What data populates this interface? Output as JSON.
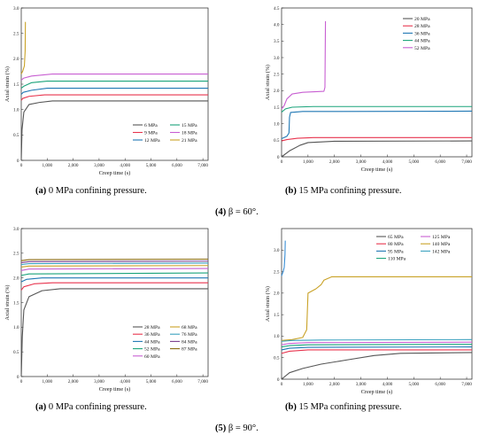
{
  "captions": {
    "a_label": "(a)",
    "a_text": " 0 MPa confining pressure.",
    "b_label": "(b)",
    "b_text": " 15 MPa confining pressure.",
    "row1_num": "(4)",
    "row1_text": " β = 60°.",
    "row2_num": "(5)",
    "row2_text": " β = 90°."
  },
  "chart_data": [
    {
      "type": "line",
      "panel": "a",
      "row": "4",
      "xlabel": "Creep time (s)",
      "ylabel": "Axial strain (%)",
      "xlim": [
        0,
        7200
      ],
      "ylim": [
        0,
        3.0
      ],
      "xticks": [
        0,
        1000,
        2000,
        3000,
        4000,
        5000,
        6000,
        7000
      ],
      "xtick_labels": [
        "0",
        "1,000",
        "2,000",
        "3,000",
        "4,000",
        "5,000",
        "6,000",
        "7,000"
      ],
      "yticks": [
        0,
        0.5,
        1.0,
        1.5,
        2.0,
        2.5,
        3.0
      ],
      "ytick_labels": [
        "0",
        "0.5",
        "1.0",
        "1.5",
        "2.0",
        "2.5",
        "3.0"
      ],
      "legend_position": "bottom-right",
      "legend_columns": 2,
      "series": [
        {
          "name": "6 MPa",
          "color": "#555555",
          "points": [
            [
              0,
              0
            ],
            [
              30,
              0.6
            ],
            [
              100,
              0.95
            ],
            [
              300,
              1.1
            ],
            [
              700,
              1.14
            ],
            [
              1200,
              1.17
            ],
            [
              7200,
              1.17
            ]
          ]
        },
        {
          "name": "9 MPa",
          "color": "#e8344e",
          "points": [
            [
              0,
              1.18
            ],
            [
              60,
              1.22
            ],
            [
              300,
              1.26
            ],
            [
              900,
              1.29
            ],
            [
              7200,
              1.29
            ]
          ]
        },
        {
          "name": "12 MPa",
          "color": "#1f77b4",
          "points": [
            [
              0,
              1.3
            ],
            [
              80,
              1.34
            ],
            [
              400,
              1.38
            ],
            [
              1000,
              1.42
            ],
            [
              7200,
              1.42
            ]
          ]
        },
        {
          "name": "15 MPa",
          "color": "#1aa37a",
          "points": [
            [
              0,
              1.42
            ],
            [
              100,
              1.46
            ],
            [
              400,
              1.53
            ],
            [
              1000,
              1.56
            ],
            [
              7200,
              1.56
            ]
          ]
        },
        {
          "name": "18 MPa",
          "color": "#c85fd2",
          "points": [
            [
              0,
              1.58
            ],
            [
              100,
              1.62
            ],
            [
              400,
              1.66
            ],
            [
              1200,
              1.7
            ],
            [
              7200,
              1.7
            ]
          ]
        },
        {
          "name": "21 MPa",
          "color": "#c9a227",
          "points": [
            [
              0,
              1.7
            ],
            [
              60,
              1.76
            ],
            [
              120,
              1.86
            ],
            [
              150,
              2.15
            ],
            [
              160,
              2.72
            ],
            [
              165,
              2.72
            ]
          ]
        }
      ]
    },
    {
      "type": "line",
      "panel": "b",
      "row": "4",
      "xlabel": "Creep time (s)",
      "ylabel": "Axial strain (%)",
      "xlim": [
        0,
        7200
      ],
      "ylim": [
        0,
        4.5
      ],
      "xticks": [
        0,
        1000,
        2000,
        3000,
        4000,
        5000,
        6000,
        7000
      ],
      "xtick_labels": [
        "0",
        "1,000",
        "2,000",
        "3,000",
        "4,000",
        "5,000",
        "6,000",
        "7,000"
      ],
      "yticks": [
        0,
        0.5,
        1.0,
        1.5,
        2.0,
        2.5,
        3.0,
        3.5,
        4.0,
        4.5
      ],
      "ytick_labels": [
        "0",
        "0.5",
        "1.0",
        "1.5",
        "2.0",
        "2.5",
        "3.0",
        "3.5",
        "4.0",
        "4.5"
      ],
      "legend_position": "top-right",
      "legend_columns": 1,
      "series": [
        {
          "name": "20 MPa",
          "color": "#555555",
          "points": [
            [
              0,
              0
            ],
            [
              300,
              0.18
            ],
            [
              700,
              0.35
            ],
            [
              1000,
              0.43
            ],
            [
              2000,
              0.47
            ],
            [
              7200,
              0.48
            ]
          ]
        },
        {
          "name": "28 MPa",
          "color": "#e8344e",
          "points": [
            [
              0,
              0.48
            ],
            [
              200,
              0.52
            ],
            [
              600,
              0.56
            ],
            [
              1200,
              0.58
            ],
            [
              7200,
              0.58
            ]
          ]
        },
        {
          "name": "36 MPa",
          "color": "#1f77b4",
          "points": [
            [
              0,
              0.55
            ],
            [
              200,
              0.62
            ],
            [
              280,
              0.72
            ],
            [
              300,
              1.2
            ],
            [
              340,
              1.34
            ],
            [
              800,
              1.37
            ],
            [
              7200,
              1.38
            ]
          ]
        },
        {
          "name": "44 MPa",
          "color": "#1aa37a",
          "points": [
            [
              0,
              1.35
            ],
            [
              150,
              1.45
            ],
            [
              400,
              1.5
            ],
            [
              1200,
              1.52
            ],
            [
              7200,
              1.52
            ]
          ]
        },
        {
          "name": "52 MPa",
          "color": "#c85fd2",
          "points": [
            [
              0,
              1.45
            ],
            [
              100,
              1.55
            ],
            [
              200,
              1.75
            ],
            [
              400,
              1.9
            ],
            [
              800,
              1.95
            ],
            [
              1600,
              1.98
            ],
            [
              1640,
              2.1
            ],
            [
              1660,
              4.1
            ]
          ]
        }
      ]
    },
    {
      "type": "line",
      "panel": "a",
      "row": "5",
      "xlabel": "Creep time (s)",
      "ylabel": "Axial strain (%)",
      "xlim": [
        0,
        7200
      ],
      "ylim": [
        0,
        3.0
      ],
      "xticks": [
        0,
        1000,
        2000,
        3000,
        4000,
        5000,
        6000,
        7000
      ],
      "xtick_labels": [
        "0",
        "1,000",
        "2,000",
        "3,000",
        "4,000",
        "5,000",
        "6,000",
        "7,000"
      ],
      "yticks": [
        0,
        0.5,
        1.0,
        1.5,
        2.0,
        2.5,
        3.0
      ],
      "ytick_labels": [
        "0",
        "0.5",
        "1.0",
        "1.5",
        "2.0",
        "2.5",
        "3.0"
      ],
      "legend_position": "bottom-right",
      "legend_columns": 2,
      "series": [
        {
          "name": "28 MPa",
          "color": "#555555",
          "points": [
            [
              0,
              0
            ],
            [
              40,
              0.8
            ],
            [
              100,
              1.35
            ],
            [
              300,
              1.62
            ],
            [
              800,
              1.74
            ],
            [
              1500,
              1.78
            ],
            [
              7200,
              1.78
            ]
          ]
        },
        {
          "name": "36 MPa",
          "color": "#e8344e",
          "points": [
            [
              0,
              1.75
            ],
            [
              100,
              1.82
            ],
            [
              500,
              1.88
            ],
            [
              1200,
              1.9
            ],
            [
              7200,
              1.9
            ]
          ]
        },
        {
          "name": "44 MPa",
          "color": "#1f77b4",
          "points": [
            [
              0,
              1.92
            ],
            [
              200,
              1.97
            ],
            [
              800,
              2.0
            ],
            [
              7200,
              2.0
            ]
          ]
        },
        {
          "name": "52 MPa",
          "color": "#1aa37a",
          "points": [
            [
              0,
              2.05
            ],
            [
              300,
              2.08
            ],
            [
              7200,
              2.1
            ]
          ]
        },
        {
          "name": "60 MPa",
          "color": "#c85fd2",
          "points": [
            [
              0,
              2.15
            ],
            [
              300,
              2.18
            ],
            [
              7200,
              2.19
            ]
          ]
        },
        {
          "name": "68 MPa",
          "color": "#c9a227",
          "points": [
            [
              0,
              2.22
            ],
            [
              300,
              2.24
            ],
            [
              7200,
              2.25
            ]
          ]
        },
        {
          "name": "76 MPa",
          "color": "#3aa1bf",
          "points": [
            [
              0,
              2.27
            ],
            [
              300,
              2.29
            ],
            [
              7200,
              2.3
            ]
          ]
        },
        {
          "name": "84 MPa",
          "color": "#7b3f8c",
          "points": [
            [
              0,
              2.31
            ],
            [
              300,
              2.33
            ],
            [
              7200,
              2.34
            ]
          ]
        },
        {
          "name": "87 MPa",
          "color": "#8b6a10",
          "points": [
            [
              0,
              2.35
            ],
            [
              300,
              2.37
            ],
            [
              7200,
              2.38
            ]
          ]
        }
      ]
    },
    {
      "type": "line",
      "panel": "b",
      "row": "5",
      "xlabel": "Creep time (s)",
      "ylabel": "Axial strain (%)",
      "xlim": [
        0,
        7200
      ],
      "ylim": [
        0,
        3.5
      ],
      "xticks": [
        0,
        1000,
        2000,
        3000,
        4000,
        5000,
        6000,
        7000
      ],
      "xtick_labels": [
        "0",
        "1,000",
        "2,000",
        "3,000",
        "4,000",
        "5,000",
        "6,000",
        "7,000"
      ],
      "yticks": [
        0,
        0.5,
        1.0,
        1.5,
        2.0,
        2.5,
        3.0
      ],
      "ytick_labels": [
        "0",
        "0.5",
        "1.0",
        "1.5",
        "2.0",
        "2.5",
        "3.0"
      ],
      "legend_position": "top-right",
      "legend_columns": 2,
      "series": [
        {
          "name": "65 MPa",
          "color": "#555555",
          "points": [
            [
              0,
              0
            ],
            [
              300,
              0.15
            ],
            [
              800,
              0.25
            ],
            [
              1500,
              0.35
            ],
            [
              2500,
              0.45
            ],
            [
              3500,
              0.55
            ],
            [
              4500,
              0.6
            ],
            [
              7200,
              0.62
            ]
          ]
        },
        {
          "name": "80 MPa",
          "color": "#e8344e",
          "points": [
            [
              0,
              0.6
            ],
            [
              300,
              0.65
            ],
            [
              1000,
              0.68
            ],
            [
              7200,
              0.68
            ]
          ]
        },
        {
          "name": "95 MPa",
          "color": "#1f77b4",
          "points": [
            [
              0,
              0.68
            ],
            [
              300,
              0.72
            ],
            [
              1000,
              0.74
            ],
            [
              7200,
              0.75
            ]
          ]
        },
        {
          "name": "110 MPa",
          "color": "#1aa37a",
          "points": [
            [
              0,
              0.75
            ],
            [
              300,
              0.78
            ],
            [
              1000,
              0.8
            ],
            [
              7200,
              0.81
            ]
          ]
        },
        {
          "name": "125 MPa",
          "color": "#c85fd2",
          "points": [
            [
              0,
              0.8
            ],
            [
              300,
              0.83
            ],
            [
              1000,
              0.85
            ],
            [
              7200,
              0.86
            ]
          ]
        },
        {
          "name": "140 MPa",
          "color": "#c9a227",
          "points": [
            [
              0,
              0.9
            ],
            [
              400,
              0.92
            ],
            [
              800,
              0.97
            ],
            [
              950,
              1.15
            ],
            [
              1000,
              2.0
            ],
            [
              1300,
              2.1
            ],
            [
              1500,
              2.2
            ],
            [
              1600,
              2.3
            ],
            [
              1900,
              2.38
            ],
            [
              7200,
              2.38
            ]
          ]
        },
        {
          "name": "142 MPa",
          "color": "#3aa1bf",
          "points": [
            [
              0,
              0.88
            ],
            [
              400,
              0.9
            ],
            [
              1500,
              0.91
            ],
            [
              7200,
              0.92
            ]
          ]
        },
        {
          "name": "",
          "color": "#3a8fd6",
          "points": [
            [
              0,
              2.4
            ],
            [
              60,
              2.5
            ],
            [
              100,
              2.6
            ],
            [
              130,
              2.9
            ],
            [
              140,
              3.22
            ]
          ]
        }
      ]
    }
  ]
}
